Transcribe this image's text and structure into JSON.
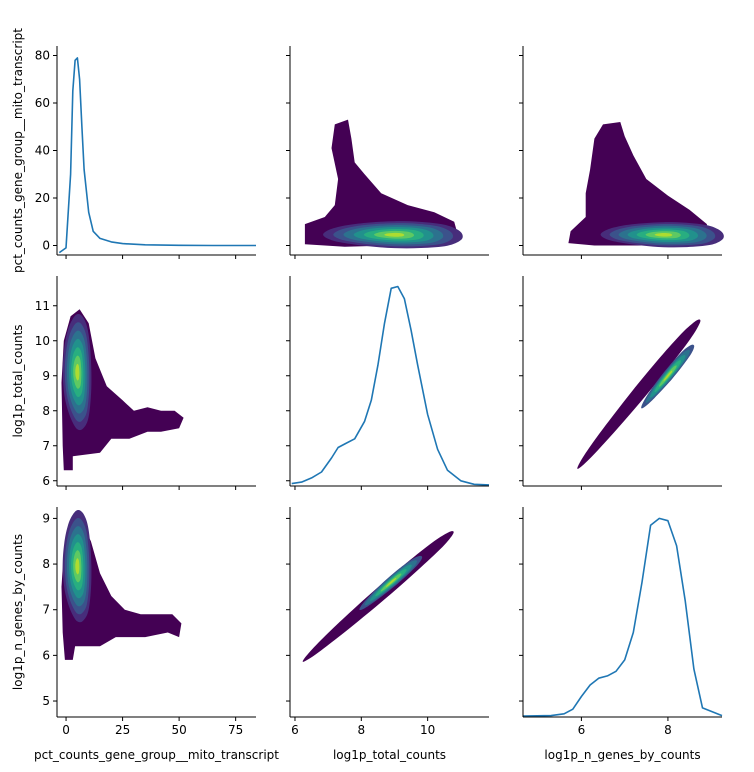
{
  "chart_data": {
    "type": "pairplot",
    "variables": [
      "pct_counts_gene_group__mito_transcript",
      "log1p_total_counts",
      "log1p_n_genes_by_counts"
    ],
    "diagonal": "kde line",
    "off_diagonal": "filled kde contours",
    "colormap": "viridis",
    "line_color": "#1f77b4",
    "grid": false,
    "axes": {
      "pct_counts_gene_group__mito_transcript": {
        "range": [
          -4,
          84
        ],
        "ticks": [
          0,
          25,
          50,
          75
        ],
        "row_ticks": [
          0,
          20,
          40,
          60,
          80
        ]
      },
      "log1p_total_counts": {
        "range": [
          5.85,
          11.85
        ],
        "ticks": [
          6,
          8,
          10
        ],
        "row_ticks": [
          6,
          7,
          8,
          9,
          10,
          11
        ]
      },
      "log1p_n_genes_by_counts": {
        "range": [
          4.65,
          9.25
        ],
        "ticks": [
          6,
          8
        ],
        "row_ticks": [
          5,
          6,
          7,
          8,
          9
        ]
      }
    },
    "labels": {
      "rows": [
        "pct_counts_gene_group__mito_transcript",
        "log1p_total_counts",
        "log1p_n_genes_by_counts"
      ],
      "cols": [
        "pct_counts_gene_group__mito_transcript",
        "log1p_total_counts",
        "log1p_n_genes_by_counts"
      ]
    },
    "kde_diagonals": {
      "pct_counts_gene_group__mito_transcript": {
        "x": [
          -3,
          0,
          2,
          3,
          4,
          5,
          6,
          7,
          8,
          10,
          12,
          15,
          20,
          25,
          35,
          50,
          65,
          84
        ],
        "y": [
          -3,
          -1,
          30,
          65,
          78,
          79,
          70,
          50,
          32,
          14,
          6,
          3,
          1.5,
          0.8,
          0.3,
          0.1,
          0,
          0
        ]
      },
      "log1p_total_counts": {
        "x": [
          5.9,
          6.2,
          6.5,
          6.8,
          7.1,
          7.3,
          7.5,
          7.8,
          8.1,
          8.3,
          8.5,
          8.7,
          8.9,
          9.1,
          9.3,
          9.5,
          9.7,
          10.0,
          10.3,
          10.6,
          11.0,
          11.4,
          11.85
        ],
        "y": [
          5.92,
          5.96,
          6.08,
          6.25,
          6.65,
          6.95,
          7.05,
          7.2,
          7.7,
          8.3,
          9.3,
          10.5,
          11.5,
          11.55,
          11.2,
          10.3,
          9.3,
          7.9,
          6.9,
          6.3,
          6.0,
          5.9,
          5.88
        ]
      },
      "log1p_n_genes_by_counts": {
        "x": [
          4.65,
          5.3,
          5.6,
          5.8,
          6.0,
          6.2,
          6.4,
          6.6,
          6.8,
          7.0,
          7.2,
          7.4,
          7.6,
          7.8,
          8.0,
          8.2,
          8.4,
          8.6,
          8.8,
          9.25
        ],
        "y": [
          4.67,
          4.68,
          4.72,
          4.82,
          5.1,
          5.35,
          5.5,
          5.55,
          5.65,
          5.9,
          6.5,
          7.6,
          8.85,
          9.0,
          8.95,
          8.4,
          7.2,
          5.7,
          4.85,
          4.68
        ]
      }
    },
    "density_peaks": {
      "pct_vs_total_counts": {
        "x": 9.0,
        "y": 4.5
      },
      "pct_vs_n_genes": {
        "x": 7.9,
        "y": 4.5
      },
      "total_counts_vs_n_genes": {
        "x": 8.0,
        "y": 9.0
      }
    }
  }
}
